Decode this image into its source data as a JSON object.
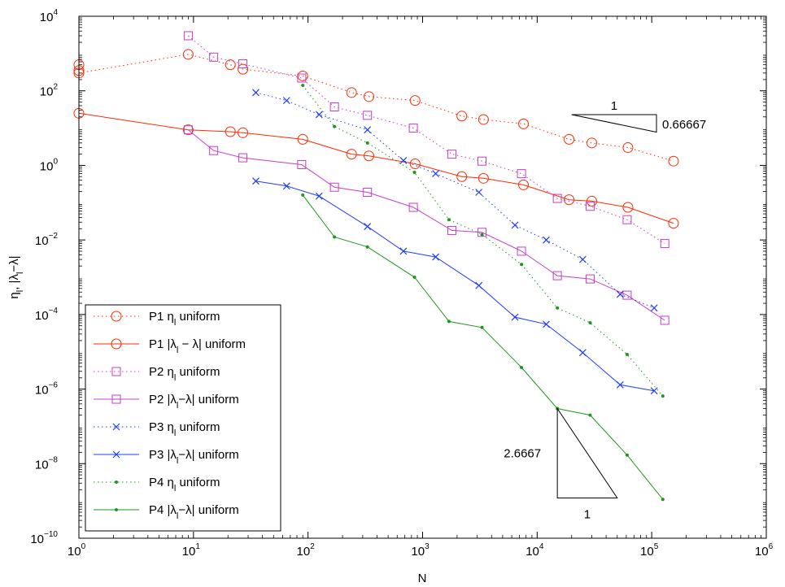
{
  "chart_data": {
    "type": "line",
    "xscale": "log",
    "yscale": "log",
    "xlim": [
      1,
      1000000
    ],
    "ylim": [
      1e-10,
      10000
    ],
    "xlabel": "N",
    "ylabel": "η_l, |λ_l−λ|",
    "x_ticks": [
      {
        "base": "10",
        "exp": "0",
        "value": 1
      },
      {
        "base": "10",
        "exp": "1",
        "value": 10
      },
      {
        "base": "10",
        "exp": "2",
        "value": 100
      },
      {
        "base": "10",
        "exp": "3",
        "value": 1000
      },
      {
        "base": "10",
        "exp": "4",
        "value": 10000
      },
      {
        "base": "10",
        "exp": "5",
        "value": 100000
      },
      {
        "base": "10",
        "exp": "6",
        "value": 1000000
      }
    ],
    "y_ticks": [
      {
        "base": "10",
        "exp": "−10",
        "value": 1e-10
      },
      {
        "base": "10",
        "exp": "−8",
        "value": 1e-08
      },
      {
        "base": "10",
        "exp": "−6",
        "value": 1e-06
      },
      {
        "base": "10",
        "exp": "−4",
        "value": 0.0001
      },
      {
        "base": "10",
        "exp": "−2",
        "value": 0.01
      },
      {
        "base": "10",
        "exp": "0",
        "value": 1
      },
      {
        "base": "10",
        "exp": "2",
        "value": 100
      },
      {
        "base": "10",
        "exp": "4",
        "value": 10000
      }
    ],
    "grid": false,
    "legend_position": "bottom-left",
    "series": [
      {
        "name": "P1 η_l uniform",
        "legend_main": "P1 η",
        "legend_sub": "l",
        "legend_rest": " uniform",
        "color": "#ff2a00",
        "line": "dotted",
        "marker": "circle",
        "x": [
          1,
          1,
          1,
          9,
          21,
          27,
          90,
          240,
          340,
          860,
          2200,
          3400,
          7600,
          19000,
          30000,
          62000,
          155000
        ],
        "y": [
          500,
          350,
          300,
          950,
          500,
          380,
          250,
          90,
          70,
          55,
          21,
          17,
          13,
          5,
          4,
          3,
          1.3
        ]
      },
      {
        "name": "P1 |λ_l − λ| uniform",
        "legend_main": "P1 |λ",
        "legend_sub": "l",
        "legend_rest": " − λ| uniform",
        "color": "#ff2a00",
        "line": "solid",
        "marker": "circle",
        "x": [
          1,
          9,
          21,
          27,
          90,
          240,
          340,
          860,
          2200,
          3400,
          7600,
          19000,
          30000,
          62000,
          155000
        ],
        "y": [
          25,
          9,
          8,
          7.5,
          5,
          2,
          1.8,
          1.1,
          0.5,
          0.45,
          0.3,
          0.12,
          0.11,
          0.075,
          0.028
        ]
      },
      {
        "name": "P2 η_l uniform",
        "legend_main": "P2 η",
        "legend_sub": "l",
        "legend_rest": " uniform",
        "color": "#c83cc8",
        "line": "dotted",
        "marker": "square",
        "x": [
          9,
          15,
          27,
          88,
          170,
          330,
          830,
          1800,
          3300,
          7300,
          15000,
          29000,
          61000,
          130000
        ],
        "y": [
          3000,
          800,
          530,
          220,
          37,
          22,
          10,
          2,
          1.3,
          0.6,
          0.13,
          0.08,
          0.035,
          0.008
        ]
      },
      {
        "name": "P2 |λ_l−λ| uniform",
        "legend_main": "P2 |λ",
        "legend_sub": "l",
        "legend_rest": "−λ| uniform",
        "color": "#c83cc8",
        "line": "solid",
        "marker": "square",
        "x": [
          9,
          15,
          27,
          88,
          170,
          330,
          830,
          1800,
          3300,
          7300,
          15000,
          29000,
          61000,
          130000
        ],
        "y": [
          9,
          2.5,
          1.6,
          1.05,
          0.26,
          0.19,
          0.075,
          0.018,
          0.016,
          0.005,
          0.0011,
          0.0009,
          0.00033,
          7e-05
        ]
      },
      {
        "name": "P3 η_l uniform",
        "legend_main": "P3 η",
        "legend_sub": "l",
        "legend_rest": " uniform",
        "color": "#1e3cff",
        "line": "dotted",
        "marker": "x",
        "x": [
          35,
          65,
          125,
          330,
          680,
          1300,
          3100,
          6400,
          12000,
          25000,
          53000,
          105000
        ],
        "y": [
          90,
          55,
          23,
          9,
          1.35,
          0.6,
          0.19,
          0.025,
          0.01,
          0.003,
          0.00035,
          0.00015
        ]
      },
      {
        "name": "P3 |λ_l−λ| uniform",
        "legend_main": "P3 |λ",
        "legend_sub": "l",
        "legend_rest": "−λ| uniform",
        "color": "#1e3cff",
        "line": "solid",
        "marker": "x",
        "x": [
          35,
          65,
          125,
          330,
          680,
          1300,
          3100,
          6400,
          12000,
          25000,
          53000,
          105000
        ],
        "y": [
          0.38,
          0.28,
          0.15,
          0.023,
          0.005,
          0.0035,
          0.0006,
          8.5e-05,
          5.5e-05,
          9.5e-06,
          1.3e-06,
          9e-07
        ]
      },
      {
        "name": "P4 η_l uniform",
        "legend_main": "P4 η",
        "legend_sub": "l",
        "legend_rest": " uniform",
        "color": "#1e961e",
        "line": "dotted",
        "marker": "dot",
        "x": [
          90,
          170,
          330,
          850,
          1700,
          3300,
          7300,
          15000,
          29000,
          61000,
          125000
        ],
        "y": [
          140,
          11,
          4,
          0.65,
          0.035,
          0.014,
          0.0022,
          0.00015,
          6e-05,
          8.5e-06,
          6.5e-07
        ]
      },
      {
        "name": "P4 |λ_l−λ| uniform",
        "legend_main": "P4 |λ",
        "legend_sub": "l",
        "legend_rest": "−λ| uniform",
        "color": "#1e961e",
        "line": "solid",
        "marker": "dot",
        "x": [
          90,
          170,
          330,
          850,
          1700,
          3300,
          7300,
          15000,
          29000,
          61000,
          125000
        ],
        "y": [
          0.16,
          0.012,
          0.0065,
          0.001,
          6.5e-05,
          4.5e-05,
          3.8e-06,
          3e-07,
          2e-07,
          1.7e-08,
          1.1e-09
        ]
      }
    ],
    "annotations": [
      {
        "label": "1",
        "slope_label": "0.66667",
        "type": "rate-triangle-upper",
        "x0": 20000,
        "x1": 110000,
        "y_top": 23,
        "y_bottom": 7.8
      },
      {
        "label": "1",
        "slope_label": "2.6667",
        "type": "rate-triangle-lower",
        "x0": 15000,
        "x1": 50000,
        "y_top": 3e-07,
        "y_bottom": 1.2e-09
      }
    ]
  }
}
